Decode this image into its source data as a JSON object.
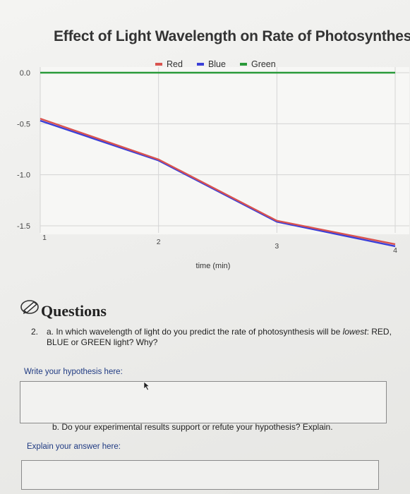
{
  "chart_data": {
    "type": "line",
    "title": "Effect of Light Wavelength on Rate of Photosynthesis",
    "xlabel": "time (min)",
    "ylabel": "",
    "x": [
      1,
      2,
      3,
      4
    ],
    "x_ticks": [
      "1",
      "2",
      "3",
      "4"
    ],
    "y_ticks": [
      "0.0",
      "-0.5",
      "-1.0",
      "-1.5"
    ],
    "ylim": [
      -1.5,
      0.0
    ],
    "xlim": [
      1,
      4
    ],
    "grid": true,
    "legend_position": "top-center",
    "series": [
      {
        "name": "Red",
        "color": "#d9534f",
        "values": [
          -0.45,
          -0.85,
          -1.45,
          -1.68
        ]
      },
      {
        "name": "Blue",
        "color": "#3b3fd8",
        "values": [
          -0.47,
          -0.86,
          -1.46,
          -1.7
        ]
      },
      {
        "name": "Green",
        "color": "#2a9a3a",
        "values": [
          0.0,
          0.0,
          0.0,
          0.0
        ]
      }
    ]
  },
  "questions": {
    "heading": "Questions",
    "q2_number": "2.",
    "q2a_prefix": "a. In which wavelength of light do you predict the rate of photosynthesis will be ",
    "q2a_emphasis": "lowest",
    "q2a_suffix": ": RED, BLUE or GREEN light?  Why?",
    "hypothesis_label": "Write your hypothesis here:",
    "q2b_text": "b. Do your experimental results support or refute your hypothesis? Explain.",
    "explain_label": "Explain your answer here:"
  },
  "icons": {
    "pencil": "pencil-icon",
    "cursor": "mouse-pointer-icon"
  }
}
